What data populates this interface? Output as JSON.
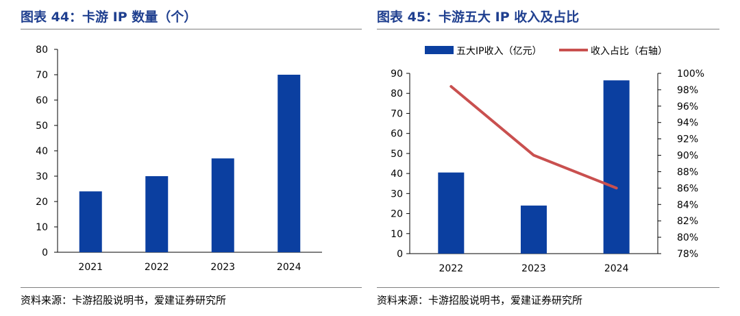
{
  "panels": {
    "left": {
      "title": "图表 44：卡游 IP 数量（个）",
      "source": "资料来源：卡游招股说明书，爱建证券研究所"
    },
    "right": {
      "title": "图表 45：卡游五大 IP 收入及占比",
      "source": "资料来源：卡游招股说明书，爱建证券研究所"
    }
  },
  "colors": {
    "bar": "#0b3fa0",
    "line": "#c9504f",
    "axis": "#000000",
    "title": "#1f3f8f"
  },
  "chart_data": [
    {
      "type": "bar",
      "title": "图表 44：卡游 IP 数量（个）",
      "categories": [
        "2021",
        "2022",
        "2023",
        "2024"
      ],
      "values": [
        24,
        30,
        37,
        70
      ],
      "ylim": [
        0,
        80
      ],
      "yticks": [
        "0",
        "10",
        "20",
        "30",
        "40",
        "50",
        "60",
        "70",
        "80"
      ],
      "xlabel": "",
      "ylabel": ""
    },
    {
      "type": "bar",
      "title": "图表 45：卡游五大 IP 收入及占比",
      "categories": [
        "2022",
        "2023",
        "2024"
      ],
      "series": [
        {
          "name": "五大IP收入（亿元）",
          "type": "bar",
          "axis": "left",
          "values": [
            40.5,
            24,
            86.5
          ]
        },
        {
          "name": "收入占比（右轴）",
          "type": "line",
          "axis": "right",
          "values": [
            98.4,
            90.0,
            86.0
          ]
        }
      ],
      "ylim": [
        0,
        90
      ],
      "yticks": [
        "0",
        "10",
        "20",
        "30",
        "40",
        "50",
        "60",
        "70",
        "80",
        "90"
      ],
      "y2lim": [
        78,
        100
      ],
      "y2ticks": [
        "78%",
        "80%",
        "82%",
        "84%",
        "86%",
        "88%",
        "90%",
        "92%",
        "94%",
        "96%",
        "98%",
        "100%"
      ],
      "legend_position": "top"
    }
  ]
}
